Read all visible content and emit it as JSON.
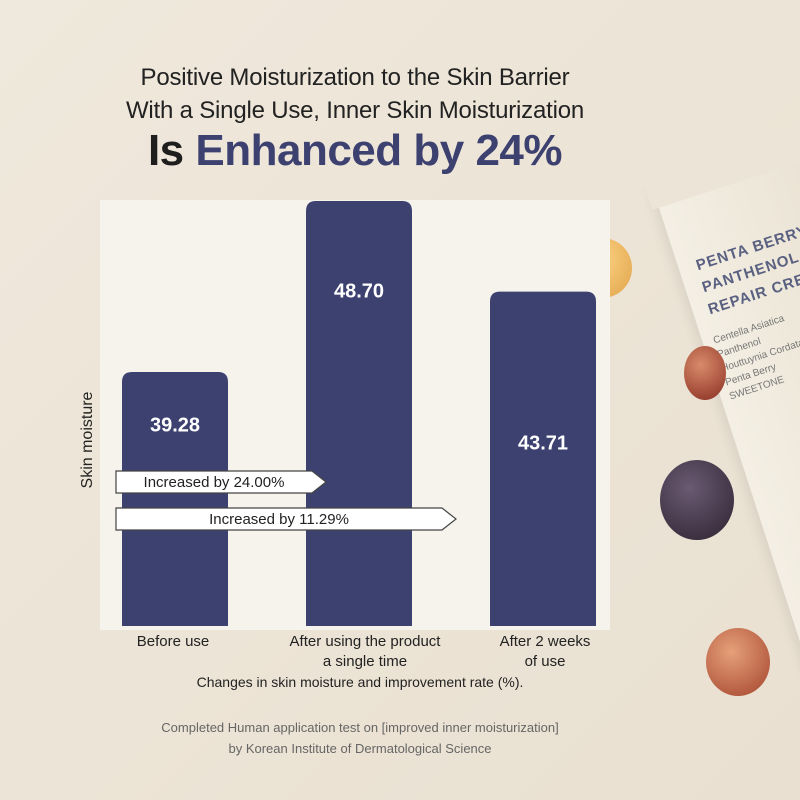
{
  "header": {
    "line1": "Positive Moisturization to the Skin Barrier",
    "line2": "With a Single Use, Inner Skin Moisturization",
    "line3_prefix": "Is",
    "line3_emphasis": "Enhanced by 24%"
  },
  "chart_data": {
    "type": "bar",
    "categories": [
      "Before use",
      "After using the product a single time",
      "After 2 weeks of use"
    ],
    "category_lines": [
      [
        "Before use"
      ],
      [
        "After using the product",
        "a single time"
      ],
      [
        "After 2 weeks",
        "of use"
      ]
    ],
    "values": [
      39.28,
      48.7,
      43.71
    ],
    "value_labels": [
      "39.28",
      "48.70",
      "43.71"
    ],
    "ylabel": "Skin moisture",
    "xlabel": "Changes in skin moisture and improvement rate (%).",
    "bar_color": "#3d4170",
    "annotations": [
      {
        "text": "Increased by 24.00%",
        "from": "Before use",
        "to": "After using the product a single time"
      },
      {
        "text": "Increased by 11.29%",
        "from": "Before use",
        "to": "After 2 weeks of use"
      }
    ]
  },
  "footer": {
    "line1": "Completed Human application test on [improved inner moisturization]",
    "line2": "by Korean Institute of Dermatological Science"
  },
  "product": {
    "name_lines": [
      "PENTA BERRY",
      "PANTHENOL",
      "REPAIR CREA"
    ],
    "ingredients": [
      "Centella Asiatica",
      "Panthenol",
      "Houttuynia Cordata",
      "Penta Berry",
      "SWEETONE"
    ]
  }
}
